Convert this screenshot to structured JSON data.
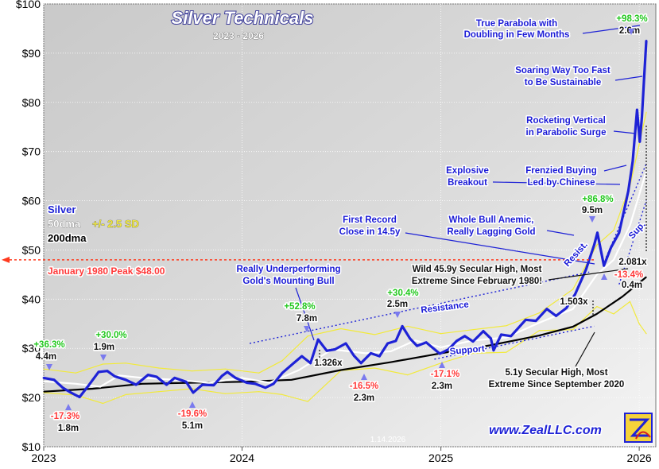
{
  "chart_data": {
    "type": "line",
    "title": "Silver Technicals",
    "subtitle": "2023 - 2026",
    "xlabel": "",
    "ylabel": "",
    "x_tick_labels": [
      "2023",
      "2024",
      "2025",
      "2026"
    ],
    "y_tick_labels": [
      "$10",
      "$20",
      "$30",
      "$40",
      "$50",
      "$60",
      "$70",
      "$80",
      "$90",
      "$100"
    ],
    "ylim": [
      10,
      100
    ],
    "xlim": [
      "2023-01-01",
      "2026-01-14"
    ],
    "grid": true,
    "legend_position": "left",
    "legend": {
      "silver": "Silver",
      "ma50": "50dma",
      "band": "+/- 2.5 SD",
      "ma200": "200dma"
    },
    "colors": {
      "silver": "#1e22d6",
      "ma50": "#ffffff",
      "band": "#f2ea3a",
      "ma200": "#000000",
      "trend": "#1e22d6",
      "peak_line": "#ff3a1e",
      "gain": "#22c81e",
      "loss": "#ff3a3a",
      "annotation": "#1a1ad6",
      "plot_bg": "#d4d4d4"
    },
    "peak_line": {
      "y": 48,
      "label": "January 1980 Peak $48.00"
    },
    "series": [
      {
        "name": "Silver",
        "points": [
          [
            "2023-01-01",
            24.0
          ],
          [
            "2023-01-20",
            23.6
          ],
          [
            "2023-02-05",
            22.0
          ],
          [
            "2023-02-20",
            21.0
          ],
          [
            "2023-03-08",
            20.1
          ],
          [
            "2023-03-25",
            22.5
          ],
          [
            "2023-04-12",
            25.2
          ],
          [
            "2023-04-28",
            25.4
          ],
          [
            "2023-05-12",
            24.3
          ],
          [
            "2023-06-01",
            23.6
          ],
          [
            "2023-06-20",
            22.6
          ],
          [
            "2023-07-12",
            24.6
          ],
          [
            "2023-07-28",
            24.2
          ],
          [
            "2023-08-15",
            22.6
          ],
          [
            "2023-08-30",
            24.0
          ],
          [
            "2023-09-20",
            23.2
          ],
          [
            "2023-10-03",
            21.0
          ],
          [
            "2023-10-20",
            22.6
          ],
          [
            "2023-11-10",
            22.5
          ],
          [
            "2023-11-25",
            24.4
          ],
          [
            "2023-12-05",
            25.2
          ],
          [
            "2023-12-20",
            24.0
          ],
          [
            "2024-01-10",
            23.0
          ],
          [
            "2024-01-25",
            22.8
          ],
          [
            "2024-02-13",
            22.0
          ],
          [
            "2024-02-28",
            22.8
          ],
          [
            "2024-03-15",
            25.0
          ],
          [
            "2024-04-05",
            27.0
          ],
          [
            "2024-04-20",
            28.4
          ],
          [
            "2024-05-06",
            27.0
          ],
          [
            "2024-05-20",
            31.8
          ],
          [
            "2024-06-05",
            29.5
          ],
          [
            "2024-06-20",
            29.8
          ],
          [
            "2024-07-10",
            31.0
          ],
          [
            "2024-07-25",
            28.5
          ],
          [
            "2024-08-07",
            27.0
          ],
          [
            "2024-08-25",
            29.0
          ],
          [
            "2024-09-10",
            28.4
          ],
          [
            "2024-09-25",
            31.0
          ],
          [
            "2024-10-10",
            31.5
          ],
          [
            "2024-10-22",
            34.5
          ],
          [
            "2024-11-05",
            32.0
          ],
          [
            "2024-11-18",
            30.5
          ],
          [
            "2024-12-05",
            31.2
          ],
          [
            "2024-12-30",
            28.9
          ],
          [
            "2025-01-15",
            29.8
          ],
          [
            "2025-01-30",
            31.5
          ],
          [
            "2025-02-14",
            32.5
          ],
          [
            "2025-03-01",
            31.4
          ],
          [
            "2025-03-20",
            33.5
          ],
          [
            "2025-04-03",
            32.0
          ],
          [
            "2025-04-08",
            29.6
          ],
          [
            "2025-04-22",
            32.8
          ],
          [
            "2025-05-10",
            32.5
          ],
          [
            "2025-06-06",
            35.8
          ],
          [
            "2025-06-25",
            35.6
          ],
          [
            "2025-07-15",
            38.0
          ],
          [
            "2025-08-01",
            36.6
          ],
          [
            "2025-08-20",
            38.2
          ],
          [
            "2025-09-05",
            41.0
          ],
          [
            "2025-09-25",
            46.0
          ],
          [
            "2025-10-10",
            51.0
          ],
          [
            "2025-10-16",
            53.5
          ],
          [
            "2025-10-28",
            46.8
          ],
          [
            "2025-11-10",
            50.5
          ],
          [
            "2025-11-25",
            53.5
          ],
          [
            "2025-12-05",
            58.5
          ],
          [
            "2025-12-12",
            62.0
          ],
          [
            "2025-12-20",
            68.0
          ],
          [
            "2025-12-28",
            78.5
          ],
          [
            "2026-01-02",
            72.0
          ],
          [
            "2026-01-06",
            77.0
          ],
          [
            "2026-01-10",
            85.0
          ],
          [
            "2026-01-14",
            92.5
          ]
        ]
      },
      {
        "name": "50dma",
        "points": [
          [
            "2023-01-01",
            23.3
          ],
          [
            "2023-03-01",
            22.8
          ],
          [
            "2023-04-15",
            22.2
          ],
          [
            "2023-05-20",
            24.5
          ],
          [
            "2023-07-01",
            24.0
          ],
          [
            "2023-09-01",
            23.6
          ],
          [
            "2023-11-01",
            23.0
          ],
          [
            "2024-01-01",
            24.0
          ],
          [
            "2024-02-20",
            23.0
          ],
          [
            "2024-04-15",
            25.6
          ],
          [
            "2024-06-15",
            29.8
          ],
          [
            "2024-08-15",
            29.0
          ],
          [
            "2024-10-01",
            29.4
          ],
          [
            "2024-11-15",
            31.6
          ],
          [
            "2025-01-01",
            30.2
          ],
          [
            "2025-03-01",
            31.6
          ],
          [
            "2025-05-01",
            32.2
          ],
          [
            "2025-07-01",
            35.2
          ],
          [
            "2025-09-01",
            38.0
          ],
          [
            "2025-10-15",
            45.0
          ],
          [
            "2025-11-15",
            48.0
          ],
          [
            "2025-12-15",
            55.0
          ],
          [
            "2026-01-14",
            66.0
          ]
        ]
      },
      {
        "name": "200dma",
        "points": [
          [
            "2023-01-01",
            21.2
          ],
          [
            "2023-04-01",
            21.8
          ],
          [
            "2023-07-01",
            22.8
          ],
          [
            "2023-10-01",
            23.0
          ],
          [
            "2024-01-01",
            23.2
          ],
          [
            "2024-04-01",
            23.6
          ],
          [
            "2024-07-01",
            25.6
          ],
          [
            "2024-10-01",
            27.2
          ],
          [
            "2025-01-01",
            29.0
          ],
          [
            "2025-04-01",
            30.6
          ],
          [
            "2025-07-01",
            32.6
          ],
          [
            "2025-09-01",
            34.4
          ],
          [
            "2025-10-15",
            37.0
          ],
          [
            "2025-12-01",
            40.5
          ],
          [
            "2026-01-14",
            44.5
          ]
        ]
      },
      {
        "name": "+2.5 SD",
        "points": [
          [
            "2023-01-01",
            25.8
          ],
          [
            "2023-03-01",
            25.0
          ],
          [
            "2023-04-20",
            26.8
          ],
          [
            "2023-06-01",
            27.0
          ],
          [
            "2023-08-01",
            26.0
          ],
          [
            "2023-10-01",
            25.4
          ],
          [
            "2023-12-01",
            25.8
          ],
          [
            "2024-02-01",
            25.0
          ],
          [
            "2024-03-15",
            27.5
          ],
          [
            "2024-05-01",
            32.5
          ],
          [
            "2024-07-01",
            34.0
          ],
          [
            "2024-09-01",
            32.8
          ],
          [
            "2024-11-01",
            34.5
          ],
          [
            "2025-01-01",
            33.0
          ],
          [
            "2025-03-01",
            33.8
          ],
          [
            "2025-05-01",
            34.6
          ],
          [
            "2025-07-01",
            37.2
          ],
          [
            "2025-09-01",
            42.0
          ],
          [
            "2025-10-15",
            51.0
          ],
          [
            "2025-11-15",
            54.0
          ],
          [
            "2025-12-15",
            63.0
          ],
          [
            "2026-01-14",
            78.0
          ]
        ]
      },
      {
        "name": "-2.5 SD",
        "points": [
          [
            "2023-01-01",
            21.0
          ],
          [
            "2023-03-01",
            20.5
          ],
          [
            "2023-04-20",
            18.8
          ],
          [
            "2023-06-01",
            20.6
          ],
          [
            "2023-08-01",
            21.2
          ],
          [
            "2023-10-01",
            21.8
          ],
          [
            "2023-12-01",
            20.8
          ],
          [
            "2024-02-01",
            21.2
          ],
          [
            "2024-03-15",
            20.6
          ],
          [
            "2024-05-01",
            19.2
          ],
          [
            "2024-07-01",
            25.5
          ],
          [
            "2024-09-01",
            26.0
          ],
          [
            "2024-11-01",
            24.6
          ],
          [
            "2025-01-01",
            27.0
          ],
          [
            "2025-03-01",
            29.0
          ],
          [
            "2025-05-01",
            29.2
          ],
          [
            "2025-07-01",
            33.6
          ],
          [
            "2025-09-01",
            33.8
          ],
          [
            "2025-10-15",
            38.5
          ],
          [
            "2025-11-15",
            37.0
          ],
          [
            "2025-12-15",
            39.5
          ],
          [
            "2026-01-01",
            35.0
          ],
          [
            "2026-01-14",
            33.0
          ]
        ]
      }
    ],
    "trendlines": [
      {
        "name": "Resistance",
        "from": [
          "2024-01-15",
          31.0
        ],
        "to": [
          "2025-10-01",
          45.5
        ]
      },
      {
        "name": "Support",
        "from": [
          "2024-12-20",
          27.8
        ],
        "to": [
          "2025-10-10",
          34.5
        ]
      },
      {
        "name": "Resist.",
        "from": [
          "2025-11-01",
          48.5
        ],
        "to": [
          "2026-01-14",
          67.5
        ]
      },
      {
        "name": "Sup.",
        "from": [
          "2025-11-25",
          43.0
        ],
        "to": [
          "2026-01-14",
          60.0
        ]
      }
    ],
    "gain_loss_labels": [
      {
        "pct": "+36.3%",
        "dur": "4.4m",
        "kind": "gain"
      },
      {
        "pct": "+30.0%",
        "dur": "1.9m",
        "kind": "gain"
      },
      {
        "pct": "+52.8%",
        "dur": "7.8m",
        "kind": "gain"
      },
      {
        "pct": "+30.4%",
        "dur": "2.5m",
        "kind": "gain"
      },
      {
        "pct": "+86.8%",
        "dur": "9.5m",
        "kind": "gain"
      },
      {
        "pct": "+98.3%",
        "dur": "2.6m",
        "kind": "gain"
      },
      {
        "pct": "-17.3%",
        "dur": "1.8m",
        "kind": "loss"
      },
      {
        "pct": "-19.6%",
        "dur": "5.1m",
        "kind": "loss"
      },
      {
        "pct": "-16.5%",
        "dur": "2.3m",
        "kind": "loss"
      },
      {
        "pct": "-17.1%",
        "dur": "2.3m",
        "kind": "loss"
      },
      {
        "pct": "-13.4%",
        "dur": "0.4m",
        "kind": "loss"
      }
    ],
    "ratio_labels": [
      "1.326x",
      "1.503x",
      "2.081x"
    ],
    "annotations": [
      {
        "lines": [
          "True Parabola with",
          "Doubling in Few Months"
        ]
      },
      {
        "lines": [
          "Soaring Way Too Fast",
          "to Be Sustainable"
        ]
      },
      {
        "lines": [
          "Rocketing Vertical",
          "in Parabolic Surge"
        ]
      },
      {
        "lines": [
          "Explosive",
          "Breakout"
        ]
      },
      {
        "lines": [
          "Frenzied Buying",
          "Led by Chinese"
        ]
      },
      {
        "lines": [
          "First Record",
          "Close in 14.5y"
        ]
      },
      {
        "lines": [
          "Whole Bull Anemic,",
          "Really Lagging Gold"
        ]
      },
      {
        "lines": [
          "Really Underperforming",
          "Gold's Mounting Bull"
        ]
      },
      {
        "lines": [
          "Wild 45.9y Secular High, Most",
          "Extreme Since February 1980!"
        ]
      },
      {
        "lines": [
          "5.1y Secular High, Most",
          "Extreme Since September 2020"
        ]
      }
    ],
    "watermark": "www.ZealLLC.com",
    "date_stamp": "1.14.2026"
  }
}
